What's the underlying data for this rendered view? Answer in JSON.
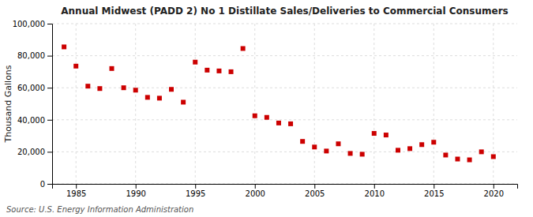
{
  "chart_data": {
    "type": "scatter",
    "title": "Annual Midwest (PADD 2) No 1 Distillate Sales/Deliveries to Commercial Consumers",
    "ylabel": "Thousand Gallons",
    "annotation": "Source: U.S. Energy Information Administration",
    "x": [
      1984,
      1985,
      1986,
      1987,
      1988,
      1989,
      1990,
      1991,
      1992,
      1993,
      1994,
      1995,
      1996,
      1997,
      1998,
      1999,
      2000,
      2001,
      2002,
      2003,
      2004,
      2005,
      2006,
      2007,
      2008,
      2009,
      2010,
      2011,
      2012,
      2013,
      2014,
      2015,
      2016,
      2017,
      2018,
      2019,
      2020
    ],
    "values": [
      85500,
      73500,
      61000,
      59500,
      72000,
      60000,
      58500,
      54000,
      53500,
      59000,
      51000,
      76000,
      71000,
      70500,
      70000,
      84500,
      42500,
      41500,
      38000,
      37500,
      26500,
      23000,
      20500,
      25000,
      19000,
      18500,
      31500,
      30500,
      21000,
      22000,
      24500,
      26000,
      18000,
      15500,
      15000,
      20000,
      17000
    ],
    "color": "#cc0000",
    "marker": "square",
    "xlim": [
      1983,
      2022
    ],
    "xticks": [
      1985,
      1990,
      1995,
      2000,
      2005,
      2010,
      2015,
      2020
    ],
    "ylim": [
      0,
      100000
    ],
    "yticks": [
      0,
      {
        "value": 20000,
        "label": "20,000"
      },
      {
        "value": 40000,
        "label": "40,000"
      },
      {
        "value": 60000,
        "label": "60,000"
      },
      {
        "value": 80000,
        "label": "80,000"
      },
      {
        "value": 100000,
        "label": "100,000"
      }
    ],
    "grid": true
  }
}
